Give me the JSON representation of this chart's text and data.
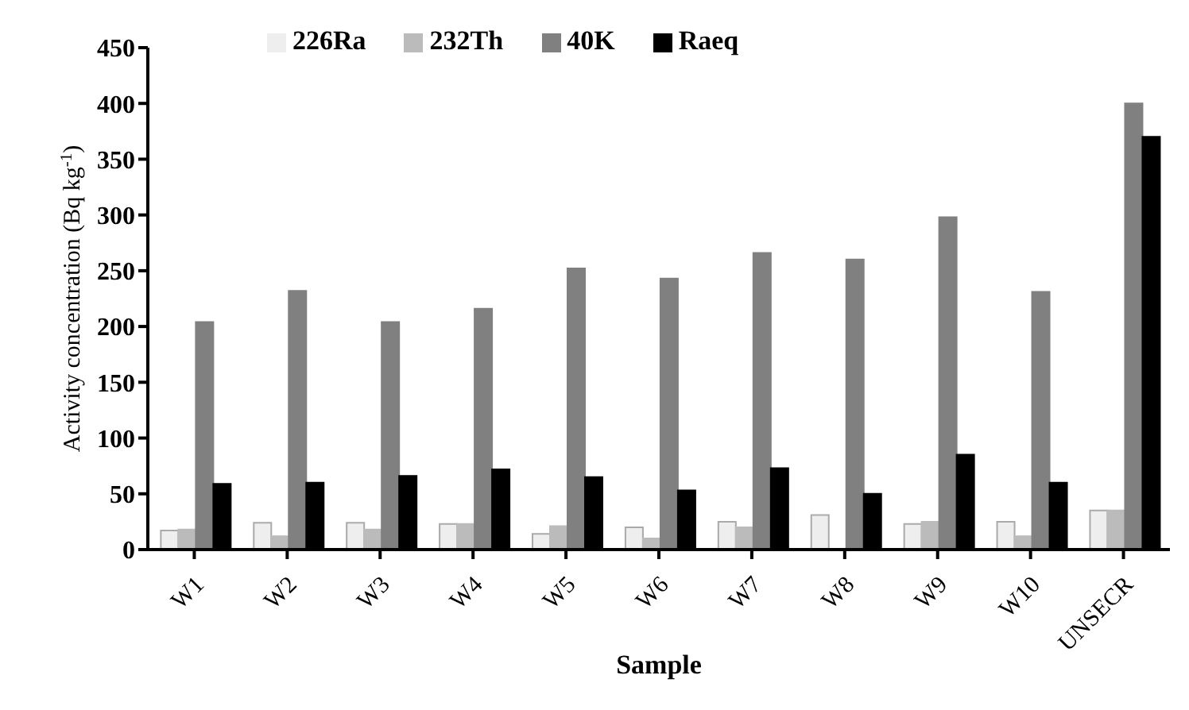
{
  "chart_data": {
    "type": "bar",
    "xlabel": "Sample",
    "ylabel": "Activity concentration (Bq kg$^{-1}$)",
    "categories": [
      "W1",
      "W2",
      "W3",
      "W4",
      "W5",
      "W6",
      "W7",
      "W8",
      "W9",
      "W10",
      "UNSECR"
    ],
    "series": [
      {
        "name": "226Ra",
        "color": "#eeeeee",
        "values": [
          17,
          24,
          24,
          23,
          14,
          20,
          25,
          31,
          23,
          25,
          35
        ]
      },
      {
        "name": "232Th",
        "color": "#bbbbbb",
        "values": [
          18,
          12,
          18,
          23,
          21,
          10,
          20,
          null,
          25,
          12,
          35
        ]
      },
      {
        "name": "40K",
        "color": "#808080",
        "values": [
          204,
          232,
          204,
          216,
          252,
          243,
          266,
          260,
          298,
          231,
          400
        ]
      },
      {
        "name": "Raeq",
        "color": "#000000",
        "values": [
          59,
          60,
          66,
          72,
          65,
          53,
          73,
          50,
          85,
          60,
          370
        ]
      }
    ],
    "ylim": [
      0,
      450
    ],
    "yticks": [
      0,
      50,
      100,
      150,
      200,
      250,
      300,
      350,
      400,
      450
    ],
    "grid": false,
    "legend": "top left"
  }
}
